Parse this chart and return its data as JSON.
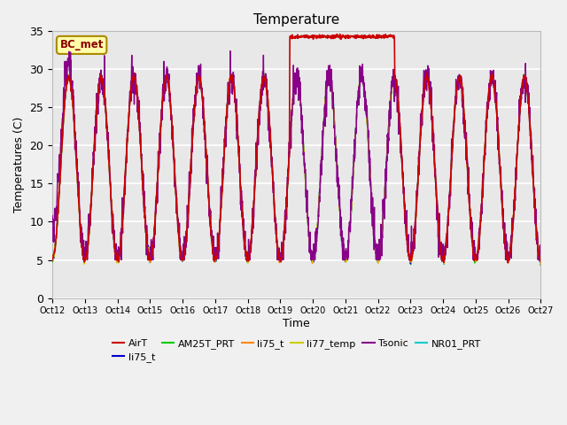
{
  "title": "Temperature",
  "xlabel": "Time",
  "ylabel": "Temperatures (C)",
  "xlim": [
    0,
    15
  ],
  "ylim": [
    0,
    35
  ],
  "yticks": [
    0,
    5,
    10,
    15,
    20,
    25,
    30,
    35
  ],
  "xtick_labels": [
    "Oct 12",
    "Oct 13",
    "Oct 14",
    "Oct 15",
    "Oct 16",
    "Oct 17",
    "Oct 18",
    "Oct 19",
    "Oct 20",
    "Oct 21",
    "Oct 22",
    "Oct 23",
    "Oct 24",
    "Oct 25",
    "Oct 26",
    "Oct 27"
  ],
  "legend_entries": [
    {
      "label": "AirT",
      "color": "#cc0000"
    },
    {
      "label": "li75_t",
      "color": "#0000cc"
    },
    {
      "label": "AM25T_PRT",
      "color": "#00cc00"
    },
    {
      "label": "li75_t",
      "color": "#ff8800"
    },
    {
      "label": "li77_temp",
      "color": "#cccc00"
    },
    {
      "label": "Tsonic",
      "color": "#880088"
    },
    {
      "label": "NR01_PRT",
      "color": "#00cccc"
    }
  ],
  "station_label": "BC_met",
  "bg_color": "#e8e8e8",
  "grid_color": "#ffffff",
  "anomaly_x_start": 7.3,
  "anomaly_x_end": 10.5,
  "anomaly_value": 34.3
}
